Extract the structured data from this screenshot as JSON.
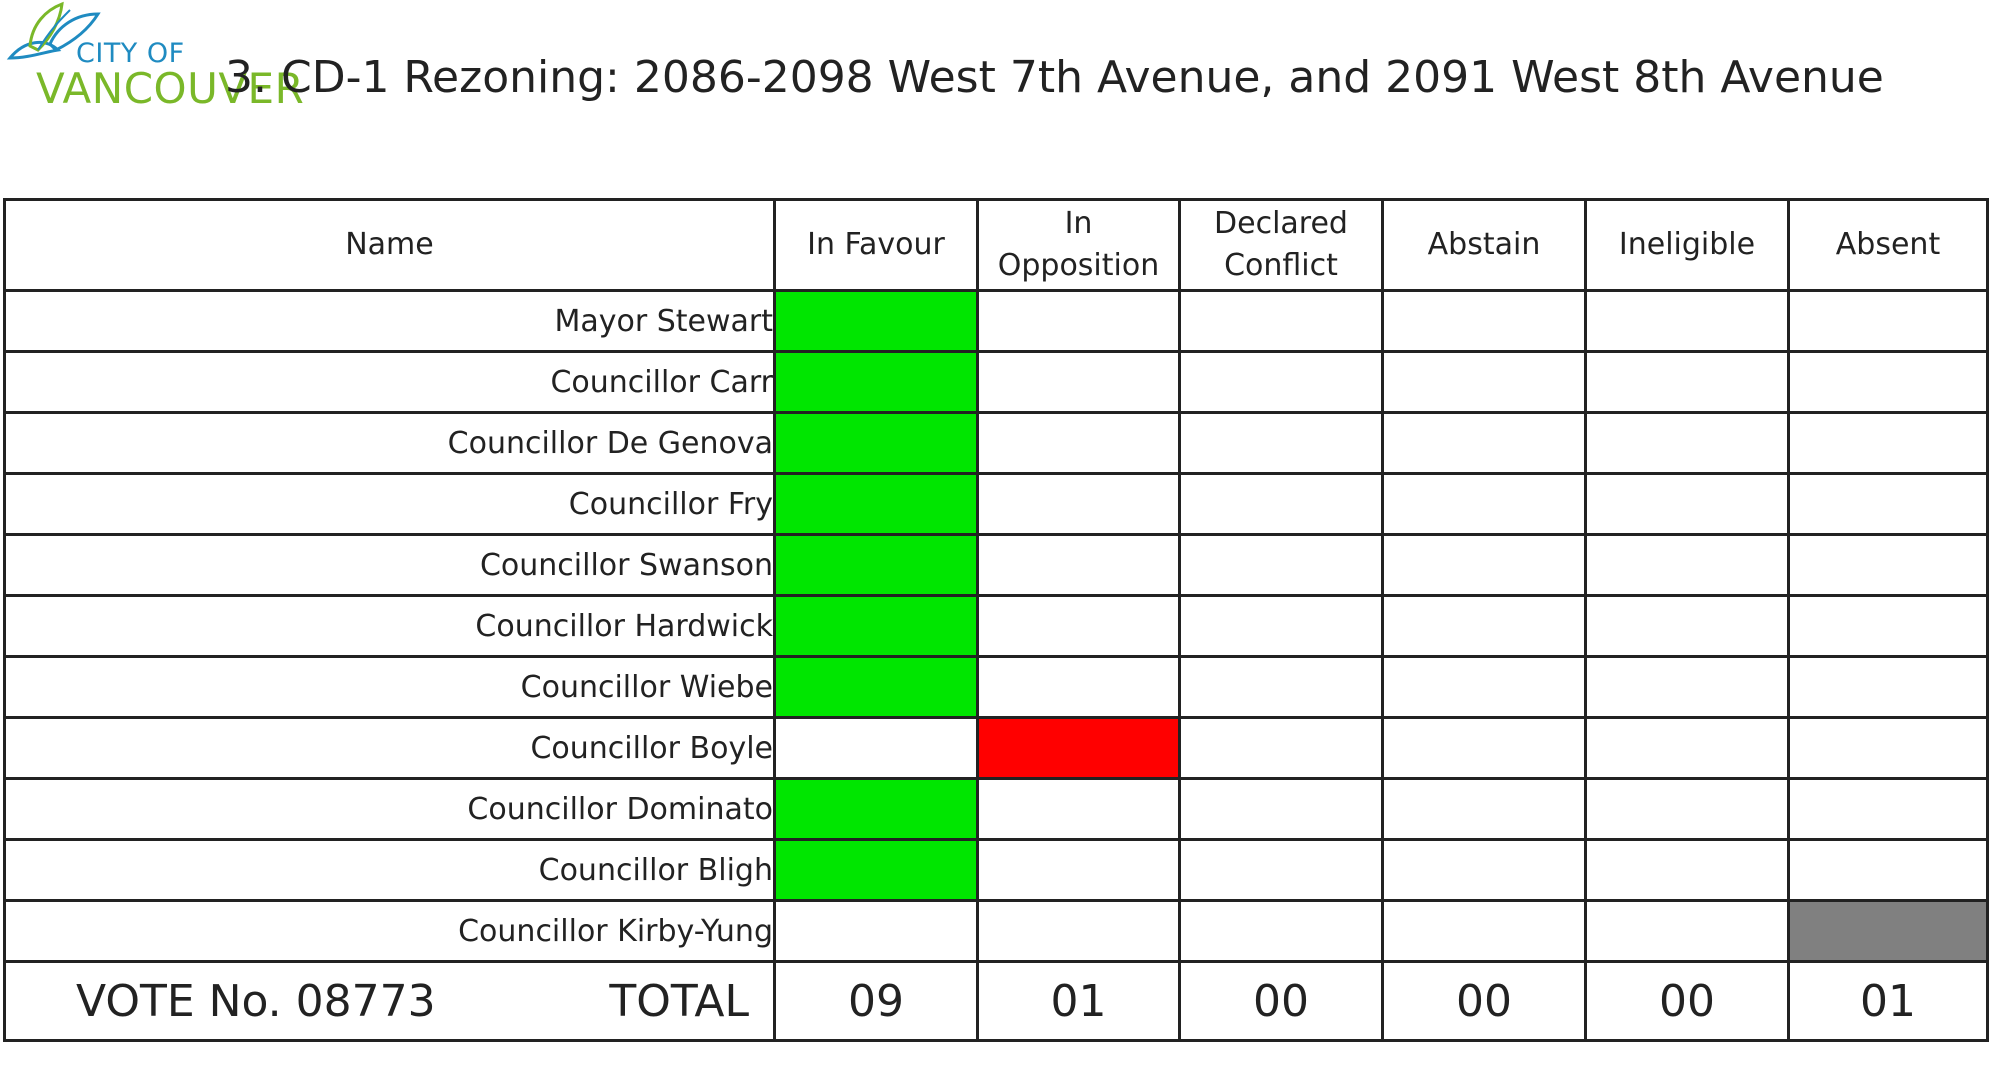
{
  "logo": {
    "city_text": "CITY OF",
    "name_text": "VANCOUVER"
  },
  "title": "3. CD-1 Rezoning: 2086-2098 West 7th Avenue, and 2091 West 8th Avenue",
  "table": {
    "headers": {
      "name": "Name",
      "in_favour": "In Favour",
      "in_opposition_1": "In",
      "in_opposition_2": "Opposition",
      "declared_conflict_1": "Declared",
      "declared_conflict_2": "Conflict",
      "abstain": "Abstain",
      "ineligible": "Ineligible",
      "absent": "Absent"
    },
    "rows": [
      {
        "name": "Mayor Stewart",
        "vote": "in_favour"
      },
      {
        "name": "Councillor Carr",
        "vote": "in_favour"
      },
      {
        "name": "Councillor De Genova",
        "vote": "in_favour"
      },
      {
        "name": "Councillor Fry",
        "vote": "in_favour"
      },
      {
        "name": "Councillor Swanson",
        "vote": "in_favour"
      },
      {
        "name": "Councillor Hardwick",
        "vote": "in_favour"
      },
      {
        "name": "Councillor Wiebe",
        "vote": "in_favour"
      },
      {
        "name": "Councillor Boyle",
        "vote": "in_opposition"
      },
      {
        "name": "Councillor Dominato",
        "vote": "in_favour"
      },
      {
        "name": "Councillor Bligh",
        "vote": "in_favour"
      },
      {
        "name": "Councillor Kirby-Yung",
        "vote": "absent"
      }
    ],
    "colors": {
      "in_favour": "#00e600",
      "in_opposition": "#ff0000",
      "absent": "#808080"
    },
    "footer": {
      "vote_no": "VOTE No. 08773",
      "total_label": "TOTAL",
      "in_favour": "09",
      "in_opposition": "01",
      "declared_conflict": "00",
      "abstain": "00",
      "ineligible": "00",
      "absent": "01"
    }
  }
}
